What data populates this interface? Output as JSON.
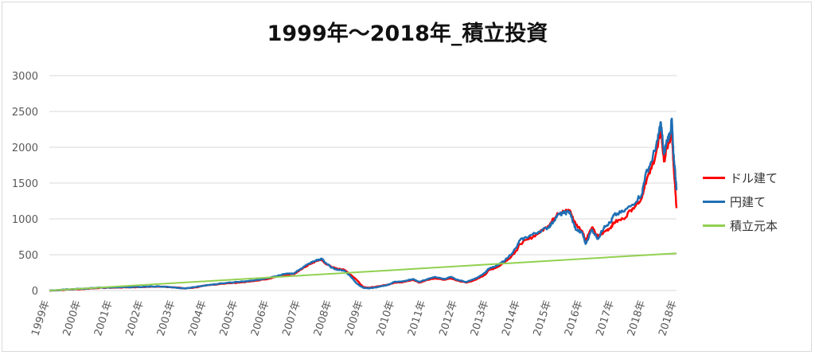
{
  "chart_data": {
    "type": "line",
    "title": "1999年～2018年_積立投資",
    "xlabel": "",
    "ylabel": "",
    "ylim": [
      0,
      3000
    ],
    "yticks": [
      "0",
      "500",
      "1000",
      "1500",
      "2000",
      "2500",
      "3000"
    ],
    "categories": [
      "1999年",
      "2000年",
      "2001年",
      "2002年",
      "2003年",
      "2004年",
      "2005年",
      "2006年",
      "2007年",
      "2008年",
      "2009年",
      "2010年",
      "2011年",
      "2012年",
      "2013年",
      "2014年",
      "2015年",
      "2016年",
      "2017年",
      "2018年",
      "2018年"
    ],
    "x_start": 1999.0,
    "x_end": 2019.0,
    "grid": "horizontal",
    "legend_position": "right",
    "series": [
      {
        "name": "ドル建て",
        "color": "#ff0000",
        "points": [
          [
            1999.0,
            0
          ],
          [
            1999.5,
            10
          ],
          [
            2000.0,
            20
          ],
          [
            2000.5,
            35
          ],
          [
            2001.0,
            40
          ],
          [
            2001.5,
            45
          ],
          [
            2002.0,
            50
          ],
          [
            2002.5,
            55
          ],
          [
            2003.0,
            45
          ],
          [
            2003.3,
            30
          ],
          [
            2003.6,
            40
          ],
          [
            2004.0,
            70
          ],
          [
            2004.5,
            95
          ],
          [
            2005.0,
            110
          ],
          [
            2005.5,
            130
          ],
          [
            2006.0,
            165
          ],
          [
            2006.5,
            220
          ],
          [
            2006.8,
            230
          ],
          [
            2007.0,
            290
          ],
          [
            2007.3,
            370
          ],
          [
            2007.5,
            410
          ],
          [
            2007.7,
            430
          ],
          [
            2007.8,
            380
          ],
          [
            2008.0,
            330
          ],
          [
            2008.2,
            300
          ],
          [
            2008.4,
            290
          ],
          [
            2008.6,
            220
          ],
          [
            2008.8,
            150
          ],
          [
            2009.0,
            50
          ],
          [
            2009.2,
            40
          ],
          [
            2009.5,
            60
          ],
          [
            2009.8,
            80
          ],
          [
            2010.0,
            110
          ],
          [
            2010.3,
            120
          ],
          [
            2010.6,
            150
          ],
          [
            2010.8,
            110
          ],
          [
            2011.0,
            140
          ],
          [
            2011.3,
            170
          ],
          [
            2011.6,
            150
          ],
          [
            2011.8,
            170
          ],
          [
            2012.0,
            140
          ],
          [
            2012.3,
            110
          ],
          [
            2012.6,
            150
          ],
          [
            2012.9,
            220
          ],
          [
            2013.0,
            280
          ],
          [
            2013.3,
            330
          ],
          [
            2013.6,
            420
          ],
          [
            2013.9,
            560
          ],
          [
            2014.0,
            650
          ],
          [
            2014.3,
            720
          ],
          [
            2014.6,
            800
          ],
          [
            2014.9,
            900
          ],
          [
            2015.0,
            950
          ],
          [
            2015.2,
            1080
          ],
          [
            2015.4,
            1100
          ],
          [
            2015.6,
            1120
          ],
          [
            2015.7,
            1000
          ],
          [
            2015.8,
            920
          ],
          [
            2016.0,
            830
          ],
          [
            2016.1,
            700
          ],
          [
            2016.3,
            880
          ],
          [
            2016.5,
            750
          ],
          [
            2016.7,
            820
          ],
          [
            2016.9,
            880
          ],
          [
            2017.0,
            950
          ],
          [
            2017.3,
            1000
          ],
          [
            2017.6,
            1150
          ],
          [
            2017.9,
            1300
          ],
          [
            2018.0,
            1500
          ],
          [
            2018.2,
            1700
          ],
          [
            2018.4,
            2000
          ],
          [
            2018.5,
            2250
          ],
          [
            2018.6,
            1800
          ],
          [
            2018.7,
            2000
          ],
          [
            2018.8,
            2100
          ],
          [
            2018.85,
            2250
          ],
          [
            2018.9,
            1800
          ],
          [
            2018.95,
            1500
          ],
          [
            2019.0,
            1150
          ]
        ]
      },
      {
        "name": "円建て",
        "color": "#1f6fb4",
        "points": [
          [
            1999.0,
            0
          ],
          [
            1999.5,
            12
          ],
          [
            2000.0,
            25
          ],
          [
            2000.5,
            38
          ],
          [
            2001.0,
            42
          ],
          [
            2001.5,
            48
          ],
          [
            2002.0,
            52
          ],
          [
            2002.5,
            58
          ],
          [
            2003.0,
            42
          ],
          [
            2003.3,
            30
          ],
          [
            2003.6,
            45
          ],
          [
            2004.0,
            75
          ],
          [
            2004.5,
            100
          ],
          [
            2005.0,
            120
          ],
          [
            2005.5,
            140
          ],
          [
            2006.0,
            175
          ],
          [
            2006.5,
            230
          ],
          [
            2006.8,
            240
          ],
          [
            2007.0,
            300
          ],
          [
            2007.3,
            380
          ],
          [
            2007.5,
            420
          ],
          [
            2007.7,
            440
          ],
          [
            2007.8,
            390
          ],
          [
            2008.0,
            320
          ],
          [
            2008.2,
            290
          ],
          [
            2008.4,
            280
          ],
          [
            2008.6,
            200
          ],
          [
            2008.8,
            100
          ],
          [
            2009.0,
            40
          ],
          [
            2009.2,
            30
          ],
          [
            2009.5,
            50
          ],
          [
            2009.8,
            80
          ],
          [
            2010.0,
            120
          ],
          [
            2010.3,
            130
          ],
          [
            2010.6,
            160
          ],
          [
            2010.8,
            120
          ],
          [
            2011.0,
            150
          ],
          [
            2011.3,
            190
          ],
          [
            2011.6,
            160
          ],
          [
            2011.8,
            190
          ],
          [
            2012.0,
            150
          ],
          [
            2012.3,
            120
          ],
          [
            2012.6,
            170
          ],
          [
            2012.9,
            250
          ],
          [
            2013.0,
            300
          ],
          [
            2013.3,
            350
          ],
          [
            2013.6,
            450
          ],
          [
            2013.9,
            600
          ],
          [
            2014.0,
            700
          ],
          [
            2014.3,
            760
          ],
          [
            2014.6,
            820
          ],
          [
            2014.9,
            880
          ],
          [
            2015.0,
            920
          ],
          [
            2015.2,
            1050
          ],
          [
            2015.4,
            1080
          ],
          [
            2015.6,
            1100
          ],
          [
            2015.7,
            950
          ],
          [
            2015.8,
            850
          ],
          [
            2016.0,
            800
          ],
          [
            2016.1,
            650
          ],
          [
            2016.3,
            850
          ],
          [
            2016.5,
            720
          ],
          [
            2016.7,
            900
          ],
          [
            2016.9,
            950
          ],
          [
            2017.0,
            1050
          ],
          [
            2017.3,
            1100
          ],
          [
            2017.6,
            1200
          ],
          [
            2017.9,
            1350
          ],
          [
            2018.0,
            1600
          ],
          [
            2018.2,
            1800
          ],
          [
            2018.4,
            2100
          ],
          [
            2018.5,
            2350
          ],
          [
            2018.6,
            1900
          ],
          [
            2018.7,
            2100
          ],
          [
            2018.8,
            2200
          ],
          [
            2018.85,
            2400
          ],
          [
            2018.9,
            1900
          ],
          [
            2018.95,
            1700
          ],
          [
            2019.0,
            1400
          ]
        ]
      },
      {
        "name": "積立元本",
        "color": "#92d050",
        "points": [
          [
            1999.0,
            0
          ],
          [
            2019.0,
            520
          ]
        ]
      }
    ]
  }
}
